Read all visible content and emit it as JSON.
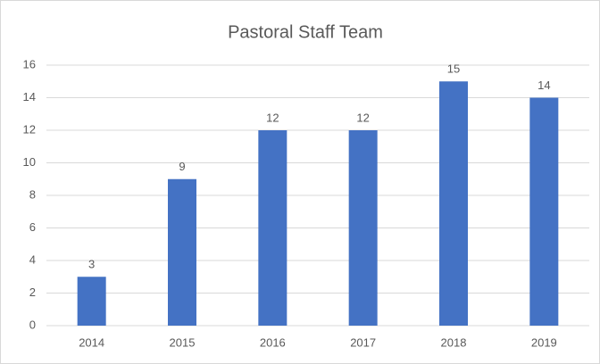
{
  "chart_data": {
    "type": "bar",
    "title": "Pastoral Staff Team",
    "categories": [
      "2014",
      "2015",
      "2016",
      "2017",
      "2018",
      "2019"
    ],
    "values": [
      3,
      9,
      12,
      12,
      15,
      14
    ],
    "color": "#4472c4",
    "ylim": [
      0,
      16
    ],
    "yticks": [
      0,
      2,
      4,
      6,
      8,
      10,
      12,
      14,
      16
    ],
    "grid": true,
    "data_labels": true
  }
}
